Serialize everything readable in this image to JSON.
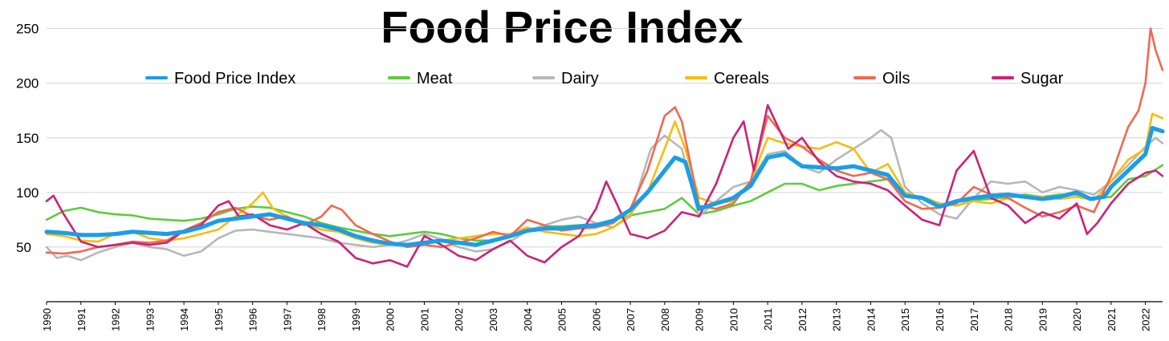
{
  "chart_data": {
    "type": "line",
    "title": "Food Price Index",
    "xlabel": "",
    "ylabel": "",
    "xlim": [
      1990,
      2022.5
    ],
    "ylim": [
      0,
      260
    ],
    "y_ticks": [
      50,
      100,
      150,
      200,
      250
    ],
    "x_ticks": [
      "1990",
      "1991",
      "1992",
      "1993",
      "1994",
      "1995",
      "1996",
      "1997",
      "1998",
      "1999",
      "2000",
      "2001",
      "2002",
      "2003",
      "2004",
      "2005",
      "2006",
      "2007",
      "2008",
      "2009",
      "2010",
      "2011",
      "2012",
      "2013",
      "2014",
      "2015",
      "2016",
      "2017",
      "2018",
      "2019",
      "2020",
      "2021",
      "2022"
    ],
    "grid": "horizontal",
    "legend_position": "top",
    "series": [
      {
        "name": "Food Price Index",
        "color": "#1a9ee8",
        "x": [
          1990,
          1990.5,
          1991,
          1991.5,
          1992,
          1992.5,
          1993,
          1993.5,
          1994,
          1994.5,
          1995,
          1995.5,
          1996,
          1996.5,
          1997,
          1997.5,
          1998,
          1998.5,
          1999,
          1999.5,
          2000,
          2000.5,
          2001,
          2001.5,
          2002,
          2002.5,
          2003,
          2003.5,
          2004,
          2004.5,
          2005,
          2005.5,
          2006,
          2006.5,
          2007,
          2007.5,
          2008,
          2008.3,
          2008.6,
          2009,
          2009.5,
          2010,
          2010.5,
          2011,
          2011.5,
          2012,
          2012.5,
          2013,
          2013.5,
          2014,
          2014.5,
          2015,
          2015.5,
          2016,
          2016.5,
          2017,
          2017.5,
          2018,
          2018.5,
          2019,
          2019.5,
          2020,
          2020.4,
          2020.8,
          2021,
          2021.5,
          2022,
          2022.2,
          2022.5
        ],
        "y": [
          64,
          63,
          61,
          61,
          62,
          64,
          63,
          62,
          64,
          68,
          74,
          76,
          78,
          80,
          76,
          72,
          70,
          66,
          60,
          56,
          53,
          52,
          54,
          56,
          54,
          52,
          56,
          60,
          65,
          67,
          67,
          69,
          70,
          74,
          84,
          100,
          120,
          132,
          128,
          85,
          90,
          95,
          106,
          132,
          135,
          124,
          123,
          122,
          124,
          120,
          116,
          97,
          95,
          87,
          92,
          95,
          97,
          98,
          96,
          94,
          96,
          100,
          94,
          96,
          105,
          120,
          135,
          159,
          156
        ]
      },
      {
        "name": "Meat",
        "color": "#5dcc3a",
        "x": [
          1990,
          1990.5,
          1991,
          1991.5,
          1992,
          1992.5,
          1993,
          1993.5,
          1994,
          1994.5,
          1995,
          1995.5,
          1996,
          1996.5,
          1997,
          1997.5,
          1998,
          1998.5,
          1999,
          1999.5,
          2000,
          2000.5,
          2001,
          2001.5,
          2002,
          2002.5,
          2003,
          2003.5,
          2004,
          2004.5,
          2005,
          2005.5,
          2006,
          2006.5,
          2007,
          2007.5,
          2008,
          2008.5,
          2009,
          2009.5,
          2010,
          2010.5,
          2011,
          2011.5,
          2012,
          2012.5,
          2013,
          2013.5,
          2014,
          2014.5,
          2015,
          2015.5,
          2016,
          2016.5,
          2017,
          2017.5,
          2018,
          2018.5,
          2019,
          2019.5,
          2020,
          2020.5,
          2021,
          2021.5,
          2022,
          2022.5
        ],
        "y": [
          75,
          83,
          86,
          82,
          80,
          79,
          76,
          75,
          74,
          76,
          80,
          85,
          87,
          86,
          82,
          78,
          72,
          68,
          65,
          62,
          60,
          62,
          64,
          62,
          58,
          56,
          56,
          60,
          66,
          69,
          69,
          70,
          71,
          75,
          79,
          82,
          85,
          95,
          80,
          83,
          88,
          92,
          100,
          108,
          108,
          102,
          106,
          108,
          110,
          112,
          98,
          96,
          90,
          88,
          93,
          94,
          96,
          98,
          96,
          98,
          98,
          94,
          96,
          112,
          115,
          125
        ]
      },
      {
        "name": "Dairy",
        "color": "#b7b7b7",
        "x": [
          1990,
          1990.3,
          1990.6,
          1991,
          1991.5,
          1992,
          1992.5,
          1993,
          1993.5,
          1994,
          1994.5,
          1995,
          1995.5,
          1996,
          1996.5,
          1997,
          1997.5,
          1998,
          1998.5,
          1999,
          1999.5,
          2000,
          2000.5,
          2001,
          2001.5,
          2002,
          2002.5,
          2003,
          2003.5,
          2004,
          2004.5,
          2005,
          2005.5,
          2006,
          2006.5,
          2007,
          2007.3,
          2007.6,
          2008,
          2008.5,
          2009,
          2009.5,
          2010,
          2010.5,
          2011,
          2011.5,
          2012,
          2012.5,
          2013,
          2013.5,
          2014,
          2014.3,
          2014.6,
          2015,
          2015.5,
          2016,
          2016.5,
          2017,
          2017.5,
          2018,
          2018.5,
          2019,
          2019.5,
          2020,
          2020.5,
          2021,
          2021.5,
          2022,
          2022.3,
          2022.5
        ],
        "y": [
          50,
          40,
          42,
          38,
          45,
          50,
          54,
          50,
          48,
          42,
          46,
          58,
          65,
          66,
          64,
          62,
          60,
          58,
          54,
          52,
          50,
          52,
          56,
          62,
          57,
          50,
          46,
          48,
          55,
          65,
          70,
          75,
          78,
          72,
          68,
          78,
          110,
          140,
          152,
          140,
          78,
          92,
          105,
          110,
          135,
          138,
          124,
          118,
          130,
          140,
          150,
          157,
          150,
          105,
          90,
          80,
          76,
          95,
          110,
          108,
          110,
          100,
          105,
          102,
          98,
          110,
          125,
          142,
          150,
          145
        ]
      },
      {
        "name": "Cereals",
        "color": "#f8bc0c",
        "x": [
          1990,
          1990.5,
          1991,
          1991.5,
          1992,
          1992.5,
          1993,
          1993.5,
          1994,
          1994.5,
          1995,
          1995.5,
          1996,
          1996.3,
          1996.6,
          1997,
          1997.5,
          1998,
          1998.5,
          1999,
          1999.5,
          2000,
          2000.5,
          2001,
          2001.5,
          2002,
          2002.5,
          2003,
          2003.5,
          2004,
          2004.5,
          2005,
          2005.5,
          2006,
          2006.5,
          2007,
          2007.5,
          2008,
          2008.3,
          2008.6,
          2009,
          2009.5,
          2010,
          2010.5,
          2011,
          2011.5,
          2012,
          2012.5,
          2013,
          2013.5,
          2014,
          2014.5,
          2015,
          2015.5,
          2016,
          2016.5,
          2017,
          2017.5,
          2018,
          2018.5,
          2019,
          2019.5,
          2020,
          2020.5,
          2021,
          2021.5,
          2022,
          2022.2,
          2022.5
        ],
        "y": [
          62,
          60,
          56,
          55,
          62,
          64,
          58,
          56,
          58,
          62,
          66,
          78,
          90,
          100,
          85,
          78,
          72,
          66,
          64,
          58,
          54,
          52,
          52,
          54,
          56,
          58,
          60,
          62,
          62,
          68,
          64,
          62,
          60,
          62,
          68,
          80,
          100,
          140,
          165,
          140,
          95,
          90,
          92,
          110,
          150,
          145,
          142,
          140,
          146,
          140,
          118,
          126,
          100,
          95,
          90,
          88,
          92,
          90,
          95,
          97,
          96,
          94,
          96,
          93,
          110,
          130,
          140,
          172,
          168
        ]
      },
      {
        "name": "Oils",
        "color": "#f2694f",
        "x": [
          1990,
          1990.5,
          1991,
          1991.5,
          1992,
          1992.5,
          1993,
          1993.5,
          1994,
          1994.5,
          1995,
          1995.5,
          1996,
          1996.5,
          1997,
          1997.5,
          1998,
          1998.3,
          1998.6,
          1999,
          1999.5,
          2000,
          2000.5,
          2001,
          2001.5,
          2002,
          2002.5,
          2003,
          2003.5,
          2004,
          2004.5,
          2005,
          2005.5,
          2006,
          2006.5,
          2007,
          2007.5,
          2008,
          2008.3,
          2008.5,
          2009,
          2009.5,
          2010,
          2010.5,
          2011,
          2011.5,
          2012,
          2012.5,
          2013,
          2013.5,
          2014,
          2014.5,
          2015,
          2015.5,
          2016,
          2016.5,
          2017,
          2017.5,
          2018,
          2018.5,
          2019,
          2019.5,
          2020,
          2020.5,
          2021,
          2021.5,
          2021.8,
          2022,
          2022.15,
          2022.3,
          2022.5
        ],
        "y": [
          45,
          44,
          46,
          50,
          52,
          55,
          54,
          56,
          65,
          72,
          82,
          86,
          78,
          75,
          78,
          70,
          78,
          88,
          84,
          70,
          62,
          55,
          50,
          52,
          50,
          54,
          58,
          64,
          60,
          75,
          70,
          65,
          67,
          68,
          72,
          85,
          120,
          170,
          178,
          165,
          88,
          85,
          90,
          110,
          170,
          150,
          142,
          130,
          120,
          115,
          118,
          112,
          92,
          85,
          86,
          90,
          105,
          98,
          95,
          86,
          78,
          82,
          88,
          82,
          115,
          160,
          175,
          200,
          250,
          230,
          212
        ]
      },
      {
        "name": "Sugar",
        "color": "#cc2277",
        "x": [
          1990,
          1990.2,
          1990.5,
          1991,
          1991.5,
          1992,
          1992.5,
          1993,
          1993.5,
          1994,
          1994.5,
          1995,
          1995.3,
          1995.6,
          1996,
          1996.5,
          1997,
          1997.5,
          1998,
          1998.5,
          1999,
          1999.5,
          2000,
          2000.5,
          2001,
          2001.5,
          2002,
          2002.5,
          2003,
          2003.5,
          2004,
          2004.5,
          2005,
          2005.5,
          2006,
          2006.3,
          2006.6,
          2007,
          2007.5,
          2008,
          2008.5,
          2009,
          2009.5,
          2010,
          2010.3,
          2010.6,
          2011,
          2011.3,
          2011.6,
          2012,
          2012.5,
          2013,
          2013.5,
          2014,
          2014.5,
          2015,
          2015.5,
          2016,
          2016.5,
          2017,
          2017.5,
          2018,
          2018.5,
          2019,
          2019.5,
          2020,
          2020.3,
          2020.6,
          2021,
          2021.5,
          2022,
          2022.3,
          2022.5
        ],
        "y": [
          92,
          97,
          80,
          55,
          50,
          52,
          54,
          52,
          54,
          65,
          70,
          88,
          92,
          78,
          80,
          70,
          66,
          72,
          62,
          55,
          40,
          35,
          38,
          32,
          60,
          52,
          42,
          38,
          48,
          56,
          42,
          36,
          50,
          60,
          85,
          110,
          90,
          62,
          58,
          65,
          82,
          78,
          108,
          150,
          165,
          120,
          180,
          160,
          140,
          150,
          128,
          115,
          110,
          108,
          102,
          88,
          75,
          70,
          120,
          138,
          95,
          88,
          72,
          82,
          76,
          90,
          62,
          72,
          90,
          108,
          118,
          120,
          115
        ]
      }
    ]
  }
}
